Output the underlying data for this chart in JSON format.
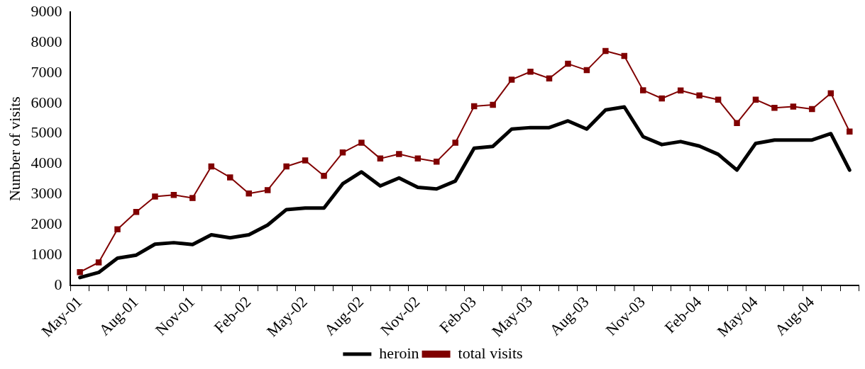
{
  "chart_data": {
    "type": "line",
    "ylabel": "Number of visits",
    "categories": [
      "May-01",
      null,
      null,
      "Aug-01",
      null,
      null,
      "Nov-01",
      null,
      null,
      "Feb-02",
      null,
      null,
      "May-02",
      null,
      null,
      "Aug-02",
      null,
      null,
      "Nov-02",
      null,
      null,
      "Feb-03",
      null,
      null,
      "May-03",
      null,
      null,
      "Aug-03",
      null,
      null,
      "Nov-03",
      null,
      null,
      "Feb-04",
      null,
      null,
      "May-04",
      null,
      null,
      "Aug-04",
      null,
      null
    ],
    "ylim": [
      0,
      9000
    ],
    "yticks": [
      0,
      1000,
      2000,
      3000,
      4000,
      5000,
      6000,
      7000,
      8000,
      9000
    ],
    "legend": "bottom",
    "series": [
      {
        "name": "heroin",
        "color": "#000000",
        "marker": "none",
        "values": [
          260,
          430,
          900,
          1000,
          1360,
          1410,
          1350,
          1670,
          1570,
          1670,
          1990,
          2500,
          2550,
          2550,
          3350,
          3740,
          3280,
          3540,
          3230,
          3180,
          3440,
          4520,
          4580,
          5150,
          5200,
          5200,
          5420,
          5150,
          5780,
          5880,
          4900,
          4640,
          4740,
          4590,
          4320,
          3800,
          4680,
          4790,
          4790,
          4790,
          5000,
          3800
        ]
      },
      {
        "name": "total visits",
        "color": "#800000",
        "marker": "square",
        "values": [
          440,
          760,
          1850,
          2420,
          2930,
          2980,
          2880,
          3920,
          3560,
          3030,
          3140,
          3920,
          4120,
          3610,
          4380,
          4700,
          4180,
          4330,
          4180,
          4080,
          4700,
          5900,
          5950,
          6780,
          7040,
          6820,
          7300,
          7090,
          7720,
          7560,
          6430,
          6160,
          6420,
          6260,
          6120,
          5350,
          6120,
          5850,
          5890,
          5810,
          6330,
          5070
        ]
      }
    ]
  }
}
